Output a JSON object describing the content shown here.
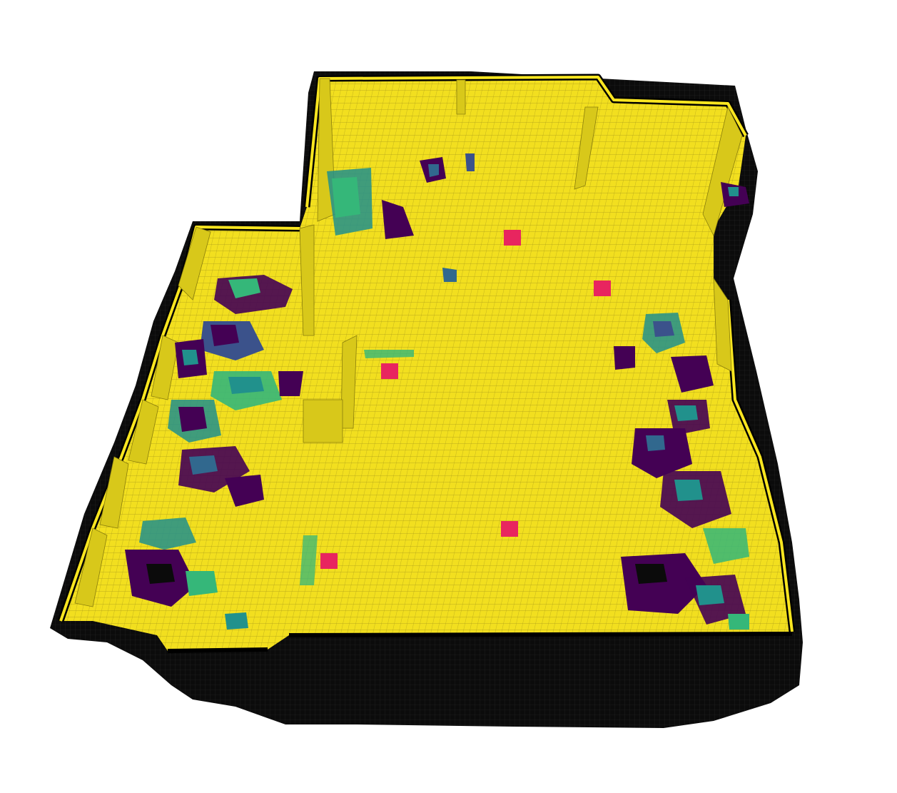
{
  "scene": {
    "kind": "3d-voxel-occupancy-map",
    "background": "#ffffff",
    "colormap": [
      "#440154",
      "#31688e",
      "#21918c",
      "#35b779",
      "#90d743",
      "#fde725"
    ],
    "colors": {
      "floor": "#f2df1f",
      "floor_grid": "#9e9110",
      "wall_top": "#fae620",
      "wall_shadow": "#c8b80e",
      "outline": "#000000",
      "base": "#0a0a0a",
      "marker": "#e8255f"
    },
    "markers": [
      {
        "name": "marker-1"
      },
      {
        "name": "marker-2"
      },
      {
        "name": "marker-3"
      },
      {
        "name": "marker-4"
      },
      {
        "name": "marker-5"
      }
    ]
  }
}
